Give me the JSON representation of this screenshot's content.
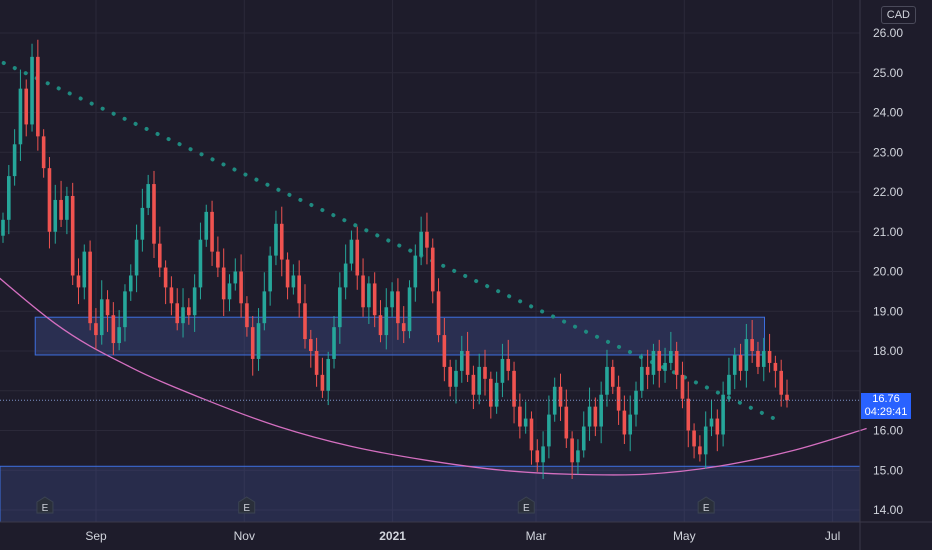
{
  "chart_data": {
    "type": "candlestick",
    "currency": "CAD",
    "ylim": [
      13.8,
      26.5
    ],
    "y_ticks": [
      "26.00",
      "25.00",
      "24.00",
      "23.00",
      "22.00",
      "21.00",
      "20.00",
      "19.00",
      "18.00",
      "17.00",
      "16.00",
      "15.00",
      "14.00"
    ],
    "x_ticks": [
      {
        "label": "Sep",
        "date": "2020-09-01"
      },
      {
        "label": "Nov",
        "date": "2020-11-01"
      },
      {
        "label": "2021",
        "date": "2021-01-01"
      },
      {
        "label": "Mar",
        "date": "2021-03-01"
      },
      {
        "label": "May",
        "date": "2021-05-01"
      },
      {
        "label": "Jul",
        "date": "2021-07-01"
      }
    ],
    "last_price": "16.76",
    "countdown": "04:29:41",
    "earnings_events": [
      {
        "label": "E",
        "date": "2020-08-11"
      },
      {
        "label": "E",
        "date": "2020-11-02"
      },
      {
        "label": "E",
        "date": "2021-02-25"
      },
      {
        "label": "E",
        "date": "2021-05-10"
      }
    ],
    "resistance_zone": {
      "from": 17.9,
      "to": 18.85,
      "start": "2020-08-07",
      "end": "2021-06-03"
    },
    "support_zone": {
      "from": 13.8,
      "to": 15.1
    },
    "trendline": {
      "start": [
        "2020-07-16",
        25.5
      ],
      "end": [
        "2021-06-07",
        16.3
      ]
    },
    "arc_curve": [
      [
        "2020-07-05",
        20.8
      ],
      [
        "2020-08-15",
        18.7
      ],
      [
        "2020-09-15",
        17.6
      ],
      [
        "2020-10-15",
        16.8
      ],
      [
        "2020-11-15",
        16.1
      ],
      [
        "2020-12-15",
        15.6
      ],
      [
        "2021-01-15",
        15.25
      ],
      [
        "2021-02-15",
        15.0
      ],
      [
        "2021-03-15",
        14.9
      ],
      [
        "2021-04-15",
        14.9
      ],
      [
        "2021-05-15",
        15.1
      ],
      [
        "2021-06-15",
        15.5
      ],
      [
        "2021-07-15",
        16.05
      ]
    ],
    "candles_close": [
      21.3,
      22.4,
      23.2,
      24.6,
      23.7,
      25.4,
      23.4,
      22.6,
      21.0,
      21.8,
      21.3,
      21.9,
      19.9,
      19.6,
      20.5,
      18.7,
      18.4,
      19.3,
      18.9,
      18.2,
      18.6,
      19.5,
      19.9,
      20.8,
      21.6,
      22.2,
      20.7,
      20.1,
      19.6,
      19.2,
      18.7,
      19.1,
      18.9,
      19.6,
      20.8,
      21.5,
      20.5,
      20.1,
      19.3,
      19.7,
      20.0,
      19.2,
      18.6,
      17.8,
      18.7,
      19.5,
      20.4,
      21.2,
      20.3,
      19.6,
      19.9,
      19.2,
      18.3,
      18.0,
      17.4,
      17.0,
      17.8,
      18.6,
      19.6,
      20.2,
      20.8,
      19.9,
      19.1,
      19.7,
      18.9,
      18.4,
      19.1,
      19.5,
      18.7,
      18.5,
      19.6,
      20.4,
      21.0,
      20.6,
      19.5,
      18.4,
      17.6,
      17.1,
      17.5,
      18.0,
      17.4,
      16.9,
      17.6,
      17.3,
      16.6,
      17.2,
      17.8,
      17.5,
      16.6,
      16.1,
      16.3,
      15.5,
      15.2,
      15.6,
      16.4,
      17.1,
      16.6,
      15.8,
      15.2,
      15.5,
      16.1,
      16.6,
      16.1,
      16.9,
      17.6,
      17.1,
      16.5,
      15.9,
      16.4,
      17.0,
      17.6,
      17.4,
      18.0,
      17.5,
      17.7,
      18.0,
      17.4,
      16.8,
      16.0,
      15.6,
      15.4,
      16.1,
      16.3,
      15.9,
      16.9,
      17.4,
      17.9,
      17.5,
      18.3,
      18.0,
      17.6,
      18.0,
      17.7,
      17.5,
      16.9,
      16.76
    ]
  }
}
